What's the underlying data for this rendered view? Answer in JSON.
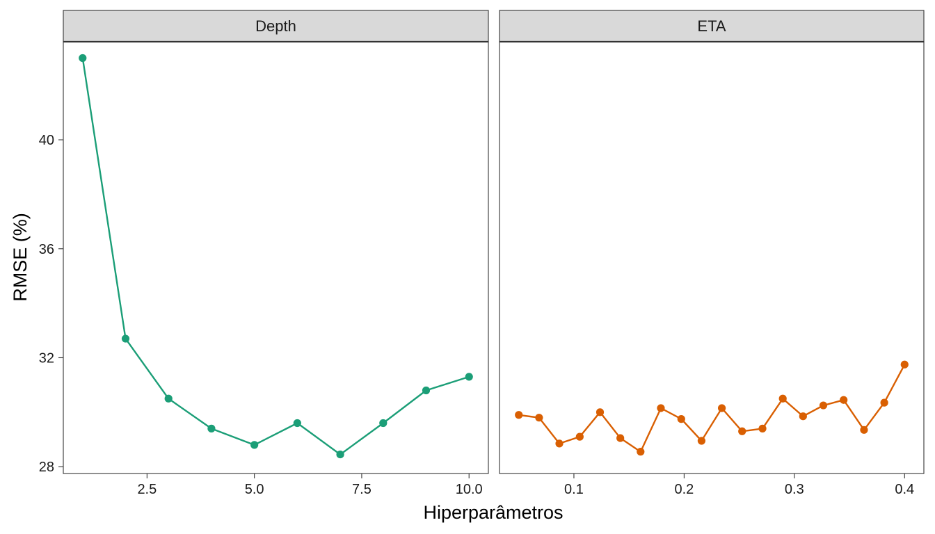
{
  "chart_data": {
    "type": "line",
    "xlabel": "Hiperparâmetros",
    "ylabel": "RMSE (%)",
    "ylim": [
      27.75,
      43.6
    ],
    "yticks": [
      28,
      32,
      36,
      40
    ],
    "ytick_labels": [
      "28",
      "32",
      "36",
      "40"
    ],
    "grid": false,
    "legend": "none",
    "panels": [
      {
        "strip": "Depth",
        "color": "#1b9e77",
        "xlim": [
          0.55,
          10.45
        ],
        "xticks": [
          2.5,
          5.0,
          7.5,
          10.0
        ],
        "xtick_labels": [
          "2.5",
          "5.0",
          "7.5",
          "10.0"
        ],
        "x": [
          1,
          2,
          3,
          4,
          5,
          6,
          7,
          8,
          9,
          10
        ],
        "y": [
          43.0,
          32.7,
          30.5,
          29.4,
          28.8,
          29.6,
          28.45,
          29.6,
          30.8,
          31.3
        ]
      },
      {
        "strip": "ETA",
        "color": "#d95f02",
        "xlim": [
          0.0325,
          0.4175
        ],
        "xticks": [
          0.1,
          0.2,
          0.3,
          0.4
        ],
        "xtick_labels": [
          "0.1",
          "0.2",
          "0.3",
          "0.4"
        ],
        "x": [
          0.05,
          0.0684,
          0.0868,
          0.1053,
          0.1237,
          0.1421,
          0.1605,
          0.1789,
          0.1974,
          0.2158,
          0.2342,
          0.2526,
          0.2711,
          0.2895,
          0.3079,
          0.3263,
          0.3447,
          0.3632,
          0.3816,
          0.4
        ],
        "y": [
          29.9,
          29.8,
          28.85,
          29.1,
          30.0,
          29.05,
          28.55,
          30.15,
          29.75,
          28.95,
          30.15,
          29.3,
          29.4,
          30.5,
          29.85,
          30.25,
          30.45,
          29.35,
          30.35,
          31.75
        ]
      }
    ]
  }
}
